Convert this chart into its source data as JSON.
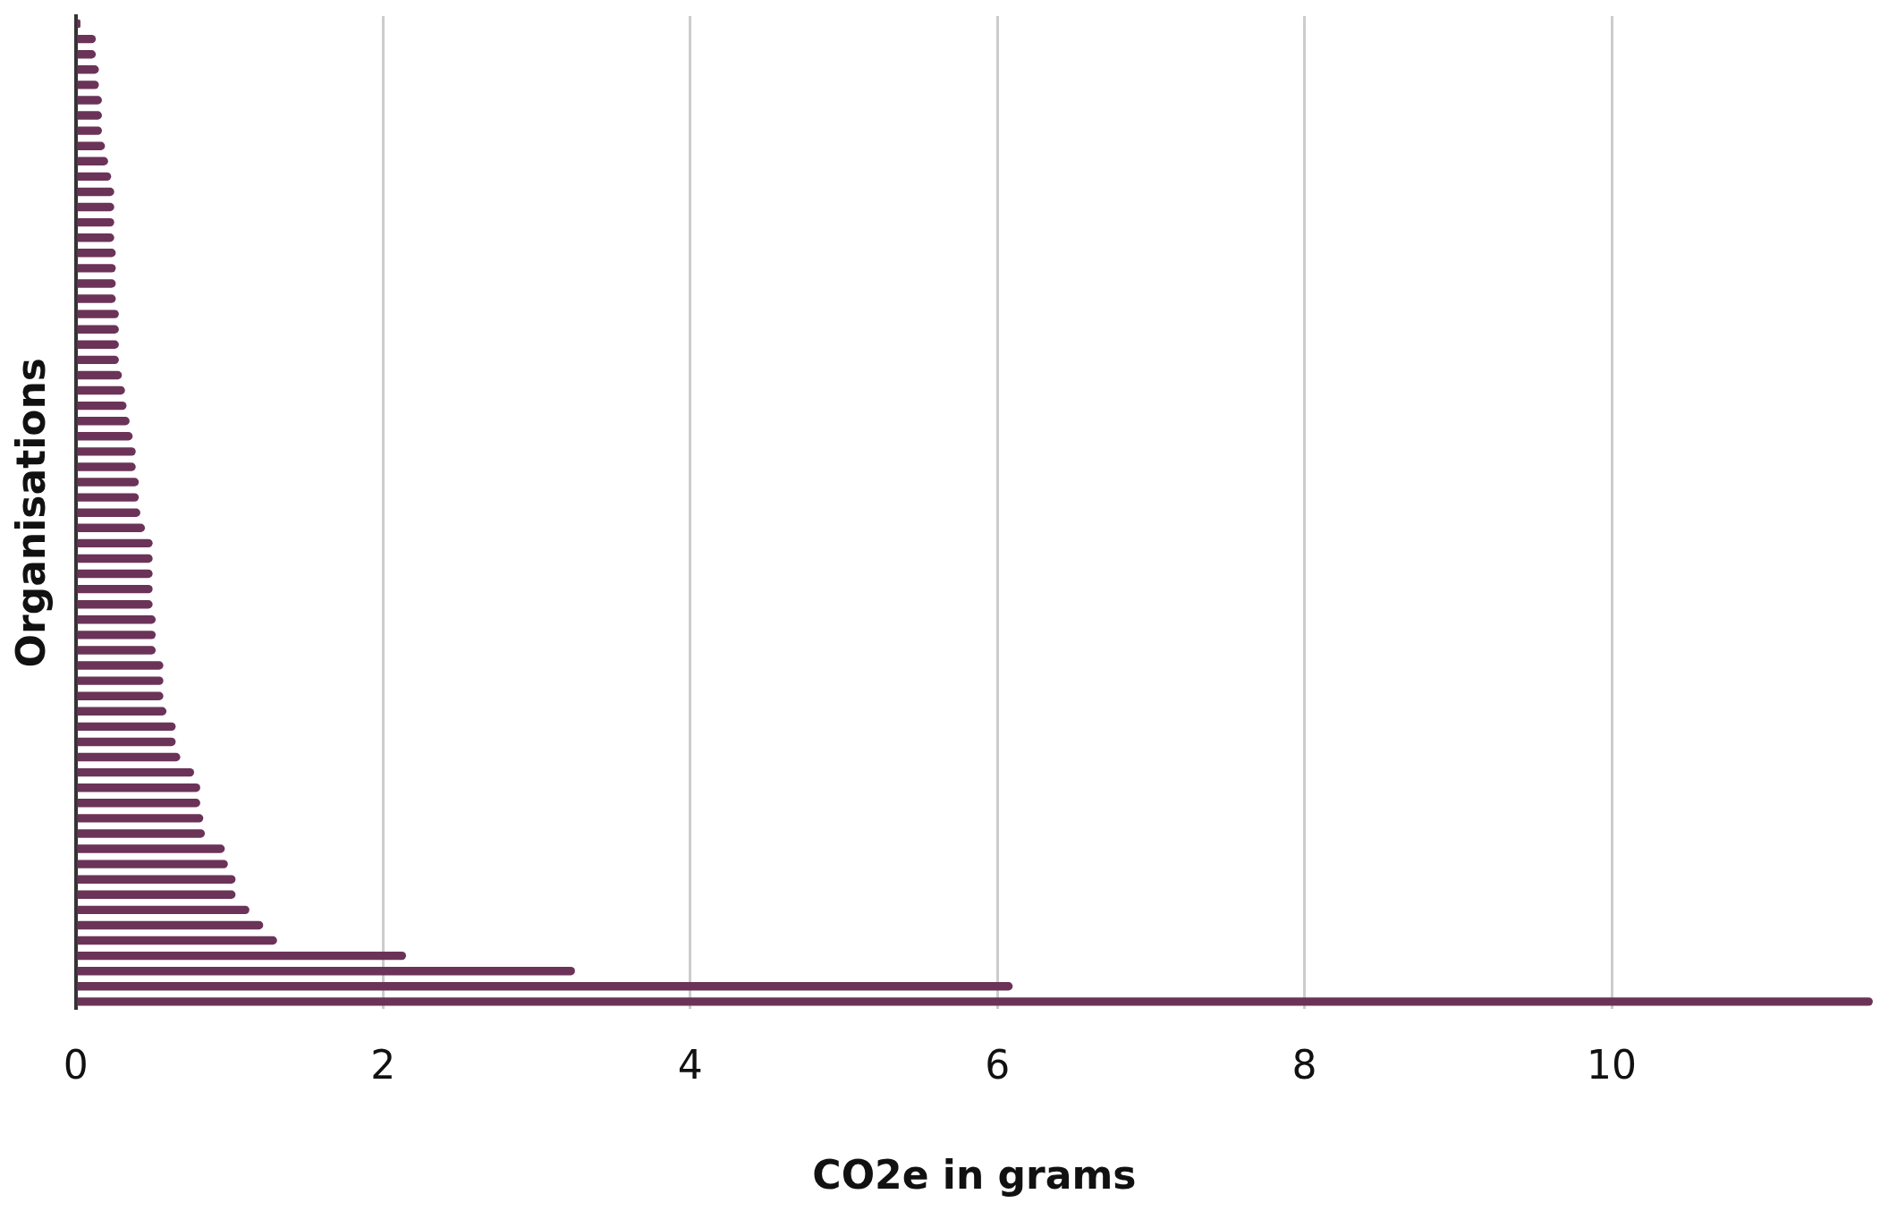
{
  "chart_data": {
    "type": "bar",
    "orientation": "horizontal",
    "xlabel": "CO2e in grams",
    "ylabel": "Organisations",
    "categories": [
      null,
      null,
      null,
      null,
      null,
      null,
      null,
      null,
      null,
      null,
      null,
      null,
      null,
      null,
      null,
      null,
      null,
      null,
      null,
      null,
      null,
      null,
      null,
      null,
      null,
      null,
      null,
      null,
      null,
      null,
      null,
      null,
      null,
      null,
      null,
      null,
      null,
      null,
      null,
      null,
      null,
      null,
      null,
      null,
      null,
      null,
      null,
      null,
      null,
      null,
      null,
      null,
      null,
      null,
      null,
      null,
      null,
      null,
      null,
      null,
      null,
      null,
      null,
      null,
      null
    ],
    "values": [
      0.03,
      0.13,
      0.13,
      0.15,
      0.15,
      0.17,
      0.17,
      0.17,
      0.19,
      0.21,
      0.23,
      0.25,
      0.25,
      0.25,
      0.25,
      0.26,
      0.26,
      0.26,
      0.26,
      0.28,
      0.28,
      0.28,
      0.28,
      0.3,
      0.32,
      0.33,
      0.35,
      0.37,
      0.39,
      0.39,
      0.41,
      0.41,
      0.42,
      0.45,
      0.5,
      0.5,
      0.5,
      0.5,
      0.5,
      0.52,
      0.52,
      0.52,
      0.57,
      0.57,
      0.57,
      0.59,
      0.65,
      0.65,
      0.68,
      0.77,
      0.81,
      0.81,
      0.83,
      0.84,
      0.97,
      0.99,
      1.04,
      1.04,
      1.13,
      1.22,
      1.31,
      2.15,
      3.25,
      6.1,
      11.7
    ],
    "color": "#6b3358",
    "xlim": [
      0,
      11.7
    ],
    "xticks": [
      0,
      2,
      4,
      6,
      8,
      10
    ],
    "grid": "x"
  }
}
